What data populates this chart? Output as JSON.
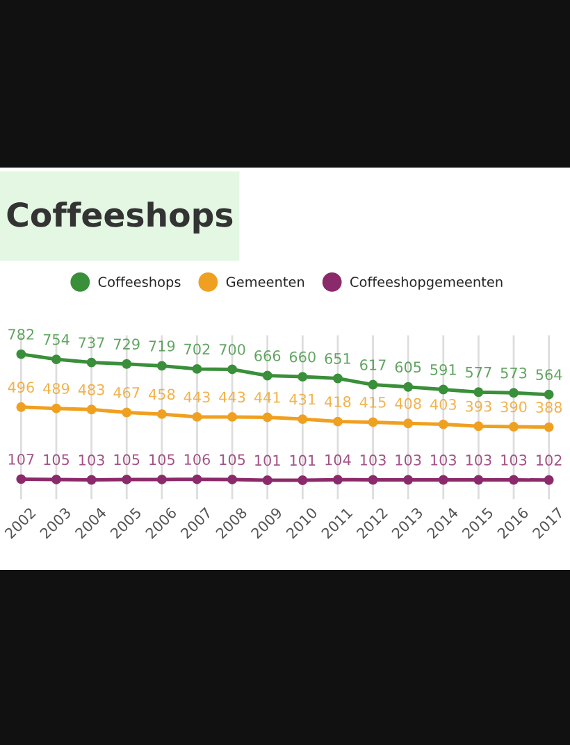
{
  "chart_data": {
    "type": "line",
    "title": "Coffeeshops",
    "categories": [
      "2002",
      "2003",
      "2004",
      "2005",
      "2006",
      "2007",
      "2008",
      "2009",
      "2010",
      "2011",
      "2012",
      "2013",
      "2014",
      "2015",
      "2016",
      "2017"
    ],
    "series": [
      {
        "name": "Coffeeshops",
        "color": "#3a8f3a",
        "values": [
          782,
          754,
          737,
          729,
          719,
          702,
          700,
          666,
          660,
          651,
          617,
          605,
          591,
          577,
          573,
          564
        ]
      },
      {
        "name": "Gemeenten",
        "color": "#f0a020",
        "values": [
          496,
          489,
          483,
          467,
          458,
          443,
          443,
          441,
          431,
          418,
          415,
          408,
          403,
          393,
          390,
          388
        ]
      },
      {
        "name": "Coffeeshopgemeenten",
        "color": "#8b2a6a",
        "values": [
          107,
          105,
          103,
          105,
          105,
          106,
          105,
          101,
          101,
          104,
          103,
          103,
          103,
          103,
          103,
          102
        ]
      }
    ],
    "data_labels": true,
    "grid": "x",
    "legend": "top",
    "marker": "circle",
    "line_style": "solid",
    "tick_labels": "x"
  }
}
